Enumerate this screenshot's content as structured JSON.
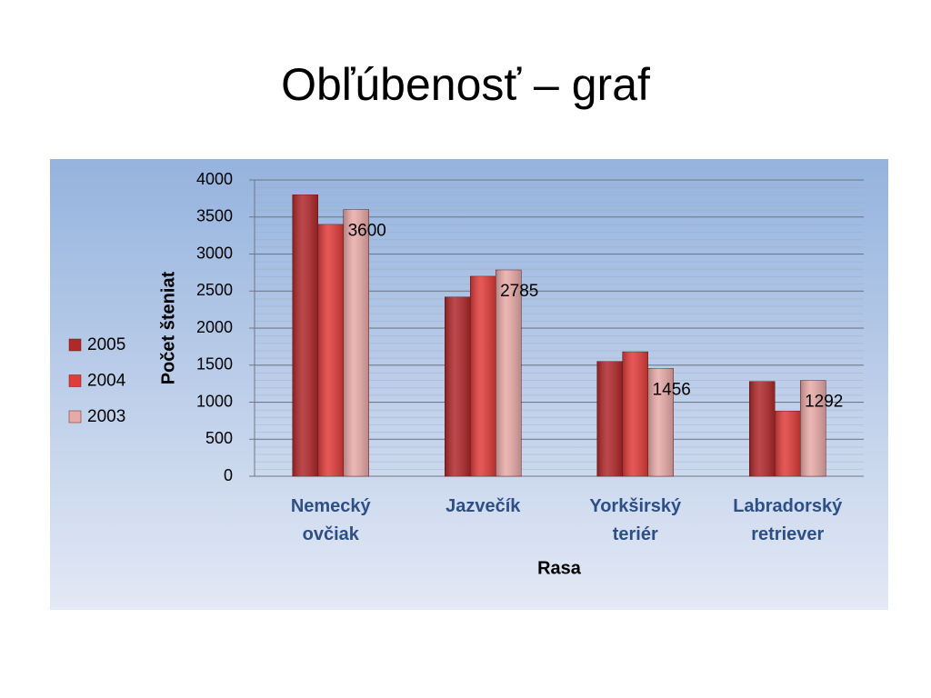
{
  "chart_data": {
    "type": "bar",
    "title": "Obľúbenosť – graf",
    "x_label": "Rasa",
    "y_label": "Počet šteniat",
    "categories": [
      "Nemecký\novčiak",
      "Jazvečík",
      "Yorkširský\nteriér",
      "Labradorský\nretriever"
    ],
    "series": [
      {
        "name": "2005",
        "color": "#b0282a",
        "values": [
          3800,
          2420,
          1550,
          1280
        ],
        "show_labels": false
      },
      {
        "name": "2004",
        "color": "#e03c3a",
        "values": [
          3400,
          2700,
          1680,
          880
        ],
        "show_labels": false
      },
      {
        "name": "2003",
        "color": "#e8aaa8",
        "values": [
          3600,
          2785,
          1456,
          1292
        ],
        "show_labels": true
      }
    ],
    "ylim": [
      0,
      4000
    ],
    "yticks": [
      0,
      500,
      1000,
      1500,
      2000,
      2500,
      3000,
      3500,
      4000
    ],
    "grid": true,
    "legend": "left"
  }
}
